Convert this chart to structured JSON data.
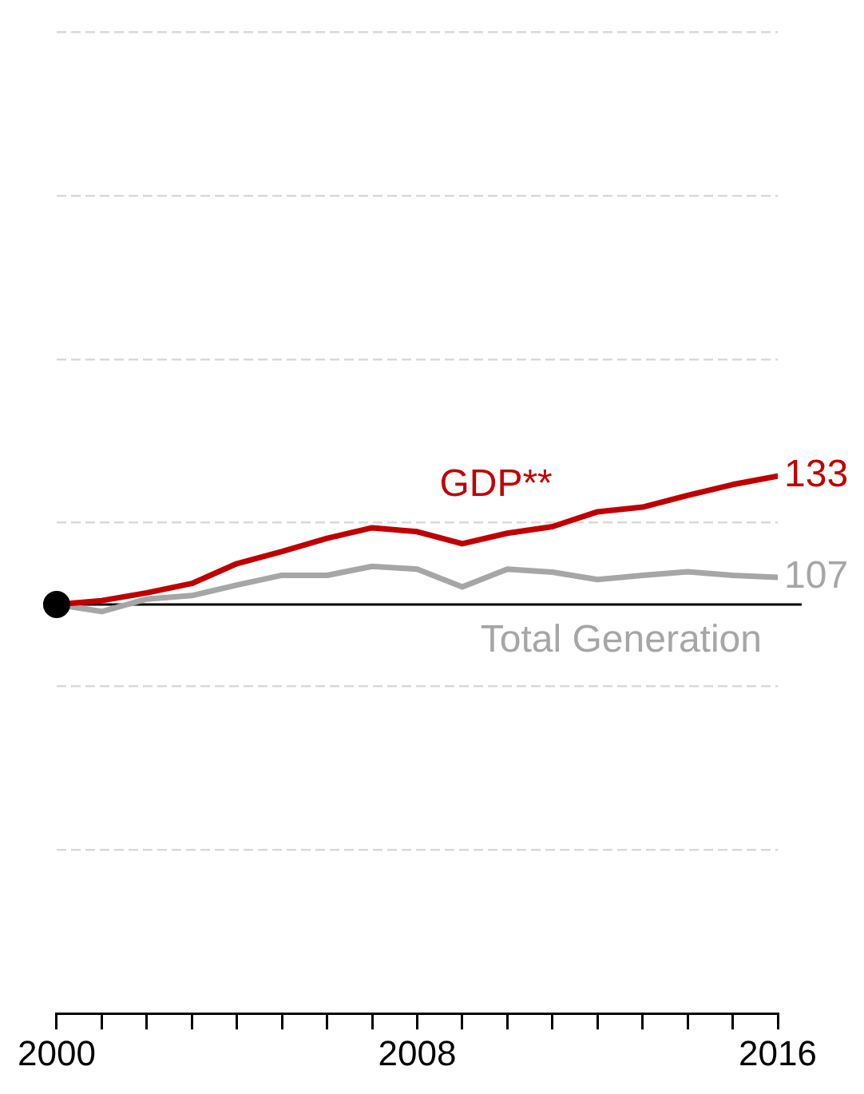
{
  "chart_data": {
    "type": "line",
    "x": [
      2000,
      2001,
      2002,
      2003,
      2004,
      2005,
      2006,
      2007,
      2008,
      2009,
      2010,
      2011,
      2012,
      2013,
      2014,
      2015,
      2016
    ],
    "series": [
      {
        "name": "GDP**",
        "color": "#c00000",
        "values": [
          100,
          101,
          103,
          105.4,
          110.5,
          113.6,
          117,
          119.7,
          118.7,
          115.6,
          118.3,
          120,
          123.8,
          125,
          128,
          130.8,
          133
        ],
        "value_labels": [
          null,
          null,
          null,
          null,
          null,
          null,
          null,
          null,
          null,
          null,
          null,
          null,
          null,
          null,
          null,
          null,
          "133"
        ]
      },
      {
        "name": "Total Generation",
        "color": "#a6a6a6",
        "values": [
          100,
          98.2,
          101.4,
          102.3,
          105,
          107.5,
          107.5,
          109.8,
          109.1,
          104.5,
          109.1,
          108.3,
          106.4,
          107.5,
          108.4,
          107.5,
          107
        ],
        "value_labels": [
          null,
          null,
          null,
          null,
          null,
          null,
          null,
          null,
          null,
          null,
          null,
          null,
          null,
          null,
          null,
          null,
          "107"
        ]
      },
      {
        "type": "scatter",
        "color": "#000000",
        "x": [
          2000
        ],
        "values": [
          100
        ],
        "marker": "circle"
      }
    ],
    "xlim": [
      2000,
      2016
    ],
    "xticks": [
      2000,
      {
        "value": 2001,
        "label": null
      },
      {
        "value": 2002,
        "label": null
      },
      {
        "value": 2003,
        "label": null
      },
      {
        "value": 2004,
        "label": null
      },
      {
        "value": 2005,
        "label": null
      },
      {
        "value": 2006,
        "label": null
      },
      {
        "value": 2007,
        "label": null
      },
      2008,
      {
        "value": 2009,
        "label": null
      },
      {
        "value": 2010,
        "label": null
      },
      {
        "value": 2011,
        "label": null
      },
      {
        "value": 2012,
        "label": null
      },
      {
        "value": 2013,
        "label": null
      },
      {
        "value": 2014,
        "label": null
      },
      {
        "value": 2015,
        "label": null
      },
      2016
    ],
    "ylim": [
      -5,
      247
    ],
    "yticks": [
      {
        "value": 37,
        "label": null
      },
      {
        "value": 79,
        "label": null
      },
      {
        "value": 121,
        "label": null
      },
      {
        "value": 163,
        "label": null
      },
      {
        "value": 205,
        "label": null
      },
      {
        "value": 247,
        "label": null
      }
    ],
    "tick_labels": "x",
    "grid": "y",
    "legend": false,
    "marker": "none",
    "line_style": "solid",
    "ref_lines": [
      {
        "axis": "y",
        "value": 100,
        "color": "#000000"
      }
    ]
  }
}
